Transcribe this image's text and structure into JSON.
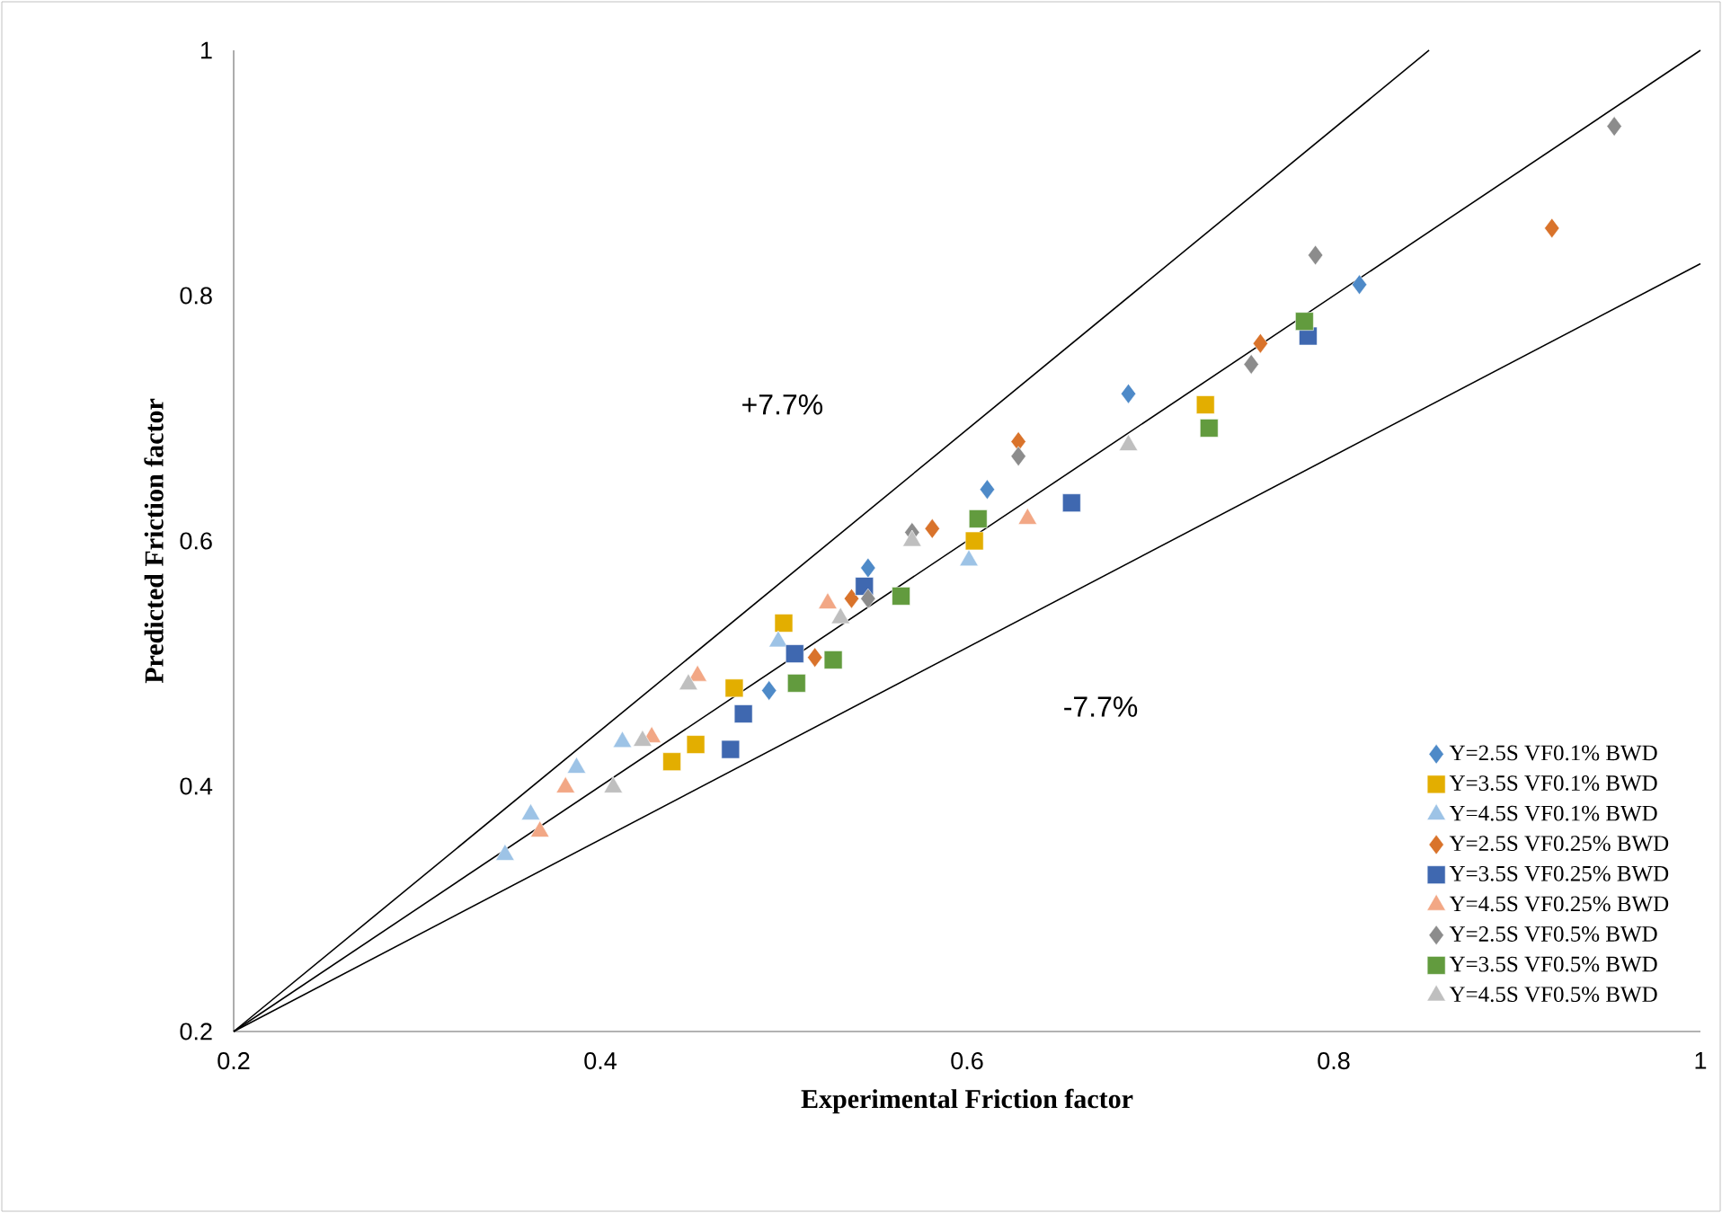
{
  "chart_data": {
    "type": "scatter",
    "xlabel": "Experimental Friction factor",
    "ylabel": "Predicted Friction factor",
    "xlim": [
      0.2,
      1
    ],
    "ylim": [
      0.2,
      1
    ],
    "xticks": [
      0.2,
      0.4,
      0.6,
      0.8,
      1
    ],
    "yticks": [
      0.2,
      0.4,
      0.6,
      0.8,
      1
    ],
    "grid": false,
    "legend": "bottom right",
    "annotations": [
      "+7.7%",
      "-7.7%"
    ],
    "series": [
      {
        "type": "line",
        "color": "#000000",
        "marker": "none",
        "line_style": "solid",
        "x": [
          0.2,
          0.852
        ],
        "values": [
          0.2,
          1
        ]
      },
      {
        "type": "line",
        "color": "#000000",
        "marker": "none",
        "line_style": "solid",
        "x": [
          0.2,
          1
        ],
        "values": [
          0.2,
          1
        ]
      },
      {
        "type": "line",
        "color": "#000000",
        "marker": "none",
        "line_style": "solid",
        "x": [
          0.2,
          1
        ],
        "values": [
          0.2,
          0.826
        ]
      },
      {
        "name": "Y=2.5S VF0.1% BWD",
        "color": "#4e8ac8",
        "marker": "diamond",
        "x": [
          0.492,
          0.546,
          0.611,
          0.688,
          0.814
        ],
        "values": [
          0.478,
          0.578,
          0.642,
          0.72,
          0.809
        ]
      },
      {
        "name": "Y=3.5S VF0.1% BWD",
        "color": "#e3ae00",
        "marker": "square",
        "x": [
          0.439,
          0.452,
          0.473,
          0.5,
          0.604,
          0.73
        ],
        "values": [
          0.42,
          0.434,
          0.48,
          0.533,
          0.6,
          0.711
        ]
      },
      {
        "name": "Y=4.5S VF0.1% BWD",
        "color": "#9dc3e6",
        "marker": "triangle",
        "x": [
          0.348,
          0.362,
          0.387,
          0.412,
          0.497,
          0.601
        ],
        "values": [
          0.344,
          0.377,
          0.415,
          0.436,
          0.518,
          0.584
        ]
      },
      {
        "name": "Y=2.5S VF0.25% BWD",
        "color": "#d9732b",
        "marker": "diamond",
        "x": [
          0.517,
          0.537,
          0.581,
          0.628,
          0.76,
          0.919
        ],
        "values": [
          0.505,
          0.553,
          0.61,
          0.681,
          0.761,
          0.855
        ]
      },
      {
        "name": "Y=3.5S VF0.25% BWD",
        "color": "#3f68b0",
        "marker": "square",
        "x": [
          0.471,
          0.478,
          0.506,
          0.544,
          0.657,
          0.786
        ],
        "values": [
          0.43,
          0.459,
          0.508,
          0.563,
          0.631,
          0.767
        ]
      },
      {
        "name": "Y=4.5S VF0.25% BWD",
        "color": "#f2a785",
        "marker": "triangle",
        "x": [
          0.367,
          0.381,
          0.428,
          0.453,
          0.524,
          0.633
        ],
        "values": [
          0.363,
          0.399,
          0.44,
          0.49,
          0.549,
          0.618
        ]
      },
      {
        "name": "Y=2.5S VF0.5% BWD",
        "color": "#8c8c8c",
        "marker": "diamond",
        "x": [
          0.546,
          0.57,
          0.628,
          0.755,
          0.79,
          0.953
        ],
        "values": [
          0.553,
          0.607,
          0.669,
          0.744,
          0.833,
          0.938
        ]
      },
      {
        "name": "Y=3.5S VF0.5% BWD",
        "color": "#629b3e",
        "marker": "square",
        "x": [
          0.507,
          0.527,
          0.564,
          0.606,
          0.732,
          0.784
        ],
        "values": [
          0.484,
          0.503,
          0.555,
          0.618,
          0.692,
          0.779
        ]
      },
      {
        "name": "Y=4.5S VF0.5% BWD",
        "color": "#bfbfbf",
        "marker": "triangle",
        "x": [
          0.407,
          0.423,
          0.448,
          0.531,
          0.57,
          0.688
        ],
        "values": [
          0.399,
          0.437,
          0.483,
          0.537,
          0.6,
          0.678
        ]
      }
    ]
  }
}
